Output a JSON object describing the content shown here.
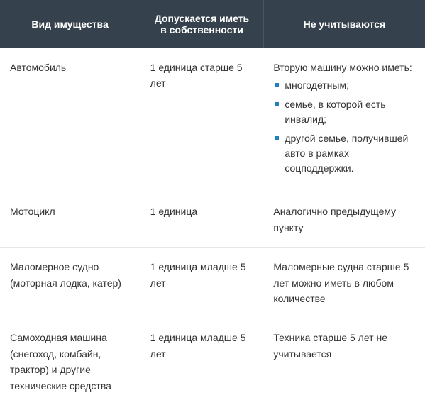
{
  "table": {
    "columns": [
      "Вид имущества",
      "Допускается иметь в собственности",
      "Не учитываются"
    ],
    "header_bg": "#35414c",
    "header_text_color": "#ffffff",
    "header_fontsize": 14,
    "cell_fontsize": 14,
    "cell_text_color": "#333333",
    "border_color": "#e6e6e6",
    "bullet_color": "#1f7fbf",
    "rows": [
      {
        "c1": "Автомобиль",
        "c2": "1 единица старше 5 лет",
        "c3_intro": "Вторую машину можно иметь:",
        "c3_items": [
          "многодетным;",
          "семье, в которой есть инвалид;",
          "другой семье, получившей авто в рамках соцподдержки."
        ]
      },
      {
        "c1": "Мотоцикл",
        "c2": "1 единица",
        "c3": "Аналогично предыдущему пункту"
      },
      {
        "c1": "Маломерное судно (моторная лодка, катер)",
        "c2": "1 единица младше 5 лет",
        "c3": "Маломерные судна старше 5 лет можно иметь в любом количестве"
      },
      {
        "c1": "Самоходная машина (снегоход, комбайн, трактор) и другие технические средства",
        "c2": "1 единица младше 5 лет",
        "c3": "Техника старше 5 лет не учитывается"
      }
    ]
  }
}
